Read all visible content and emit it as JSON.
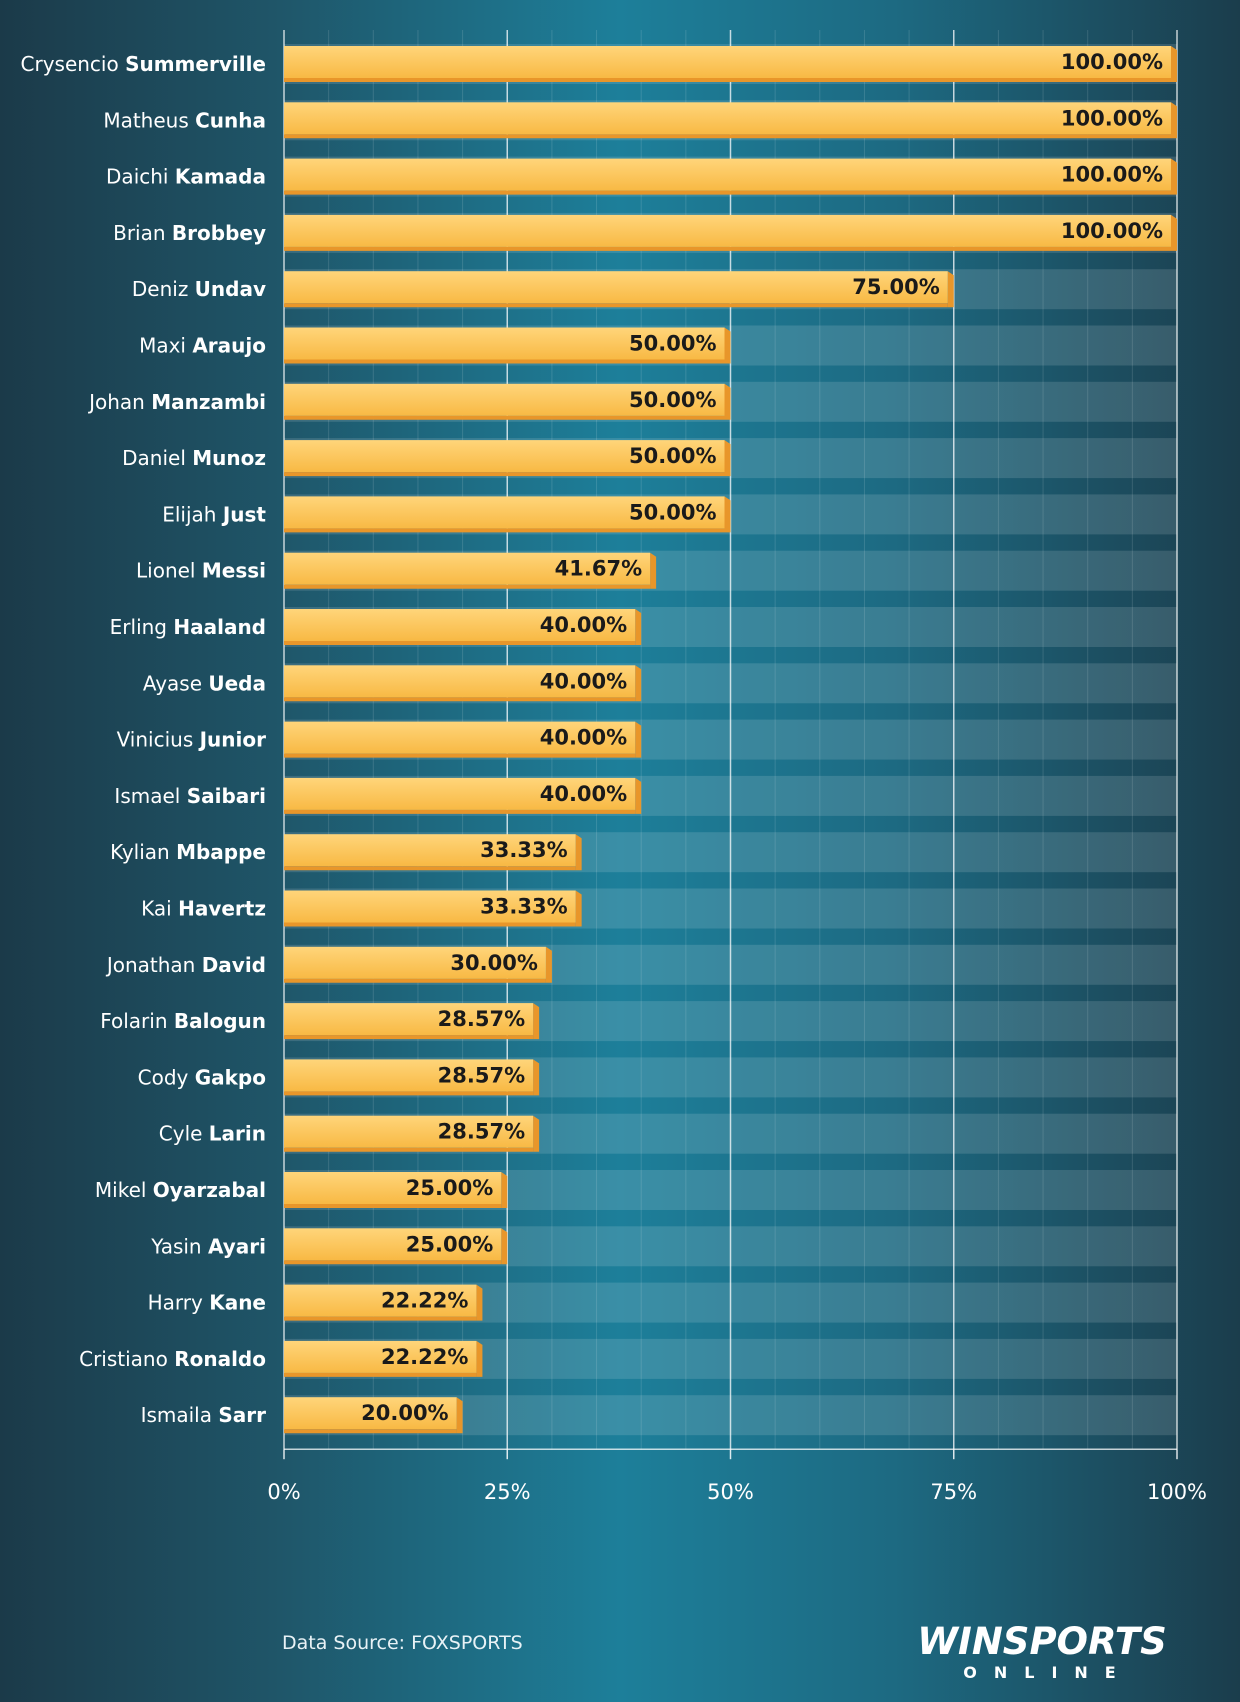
{
  "chart_data": {
    "type": "bar",
    "orientation": "horizontal",
    "categories": [
      {
        "first": "Crysencio",
        "last": "Summerville"
      },
      {
        "first": "Matheus",
        "last": "Cunha"
      },
      {
        "first": "Daichi",
        "last": "Kamada"
      },
      {
        "first": "Brian",
        "last": "Brobbey"
      },
      {
        "first": "Deniz",
        "last": "Undav"
      },
      {
        "first": "Maxi",
        "last": "Araujo"
      },
      {
        "first": "Johan",
        "last": "Manzambi"
      },
      {
        "first": "Daniel",
        "last": "Munoz"
      },
      {
        "first": "Elijah",
        "last": "Just"
      },
      {
        "first": "Lionel",
        "last": "Messi"
      },
      {
        "first": "Erling",
        "last": "Haaland"
      },
      {
        "first": "Ayase",
        "last": "Ueda"
      },
      {
        "first": "Vinicius",
        "last": "Junior"
      },
      {
        "first": "Ismael",
        "last": "Saibari"
      },
      {
        "first": "Kylian",
        "last": "Mbappe"
      },
      {
        "first": "Kai",
        "last": "Havertz"
      },
      {
        "first": "Jonathan",
        "last": "David"
      },
      {
        "first": "Folarin",
        "last": "Balogun"
      },
      {
        "first": "Cody",
        "last": "Gakpo"
      },
      {
        "first": "Cyle",
        "last": "Larin"
      },
      {
        "first": "Mikel",
        "last": "Oyarzabal"
      },
      {
        "first": "Yasin",
        "last": "Ayari"
      },
      {
        "first": "Harry",
        "last": "Kane"
      },
      {
        "first": "Cristiano",
        "last": "Ronaldo"
      },
      {
        "first": "Ismaila",
        "last": "Sarr"
      }
    ],
    "values": [
      100.0,
      100.0,
      100.0,
      100.0,
      75.0,
      50.0,
      50.0,
      50.0,
      50.0,
      41.67,
      40.0,
      40.0,
      40.0,
      40.0,
      33.33,
      33.33,
      30.0,
      28.57,
      28.57,
      28.57,
      25.0,
      25.0,
      22.22,
      22.22,
      20.0
    ],
    "value_labels": [
      "100.00%",
      "100.00%",
      "100.00%",
      "100.00%",
      "75.00%",
      "50.00%",
      "50.00%",
      "50.00%",
      "50.00%",
      "41.67%",
      "40.00%",
      "40.00%",
      "40.00%",
      "40.00%",
      "33.33%",
      "33.33%",
      "30.00%",
      "28.57%",
      "28.57%",
      "28.57%",
      "25.00%",
      "25.00%",
      "22.22%",
      "22.22%",
      "20.00%"
    ],
    "xlim": [
      0,
      100
    ],
    "x_ticks": [
      0,
      25,
      50,
      75,
      100
    ],
    "x_tick_labels": [
      "0%",
      "25%",
      "50%",
      "75%",
      "100%"
    ],
    "grid": true,
    "bar_color": "#fbbd4c",
    "bar_shadow_color": "#e8962a"
  },
  "footer": {
    "source": "Data Source: FOXSPORTS",
    "logo_main": "WINSPORTS",
    "logo_sub": "ONLINE"
  }
}
